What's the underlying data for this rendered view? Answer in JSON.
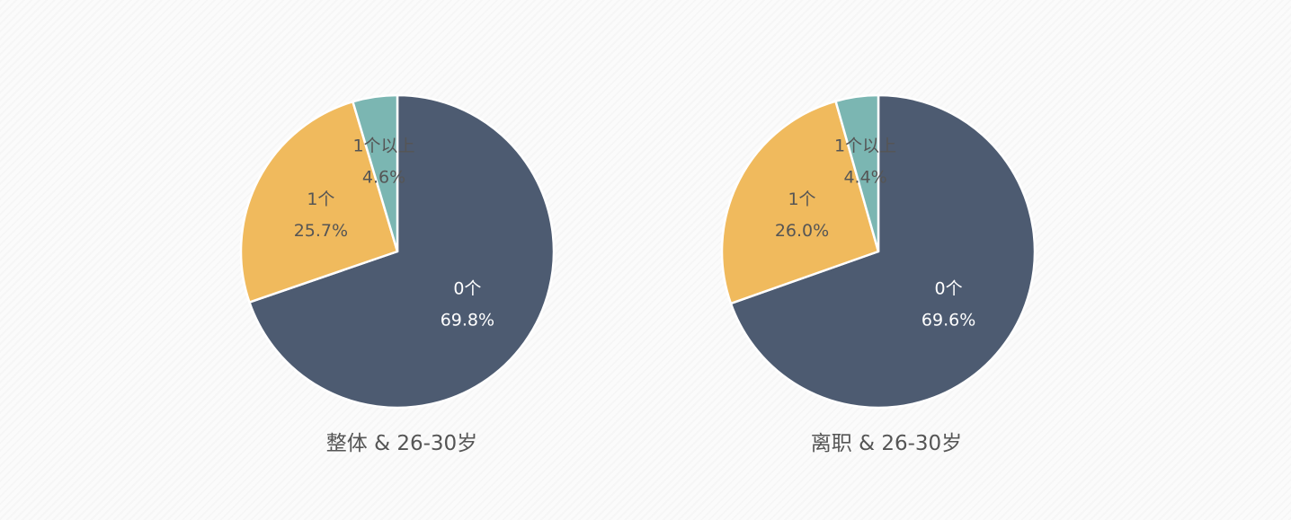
{
  "colors": {
    "slice_0": "#4d5b71",
    "slice_1": "#f0ba5d",
    "slice_2": "#7bb6b2",
    "slice_border": "#ffffff",
    "label_on_dark": "#ffffff",
    "label_on_light": "#555555"
  },
  "chart_data": [
    {
      "type": "pie",
      "title": "整体 & 26-30岁",
      "categories": [
        "0个",
        "1个",
        "1个以上"
      ],
      "values": [
        69.8,
        25.7,
        4.6
      ],
      "value_labels": [
        "69.8%",
        "25.7%",
        "4.6%"
      ],
      "start_angle_deg": 0,
      "direction": "clockwise",
      "legend": "none"
    },
    {
      "type": "pie",
      "title": "离职 & 26-30岁",
      "categories": [
        "0个",
        "1个",
        "1个以上"
      ],
      "values": [
        69.6,
        26.0,
        4.4
      ],
      "value_labels": [
        "69.6%",
        "26.0%",
        "4.4%"
      ],
      "start_angle_deg": 0,
      "direction": "clockwise",
      "legend": "none"
    }
  ]
}
